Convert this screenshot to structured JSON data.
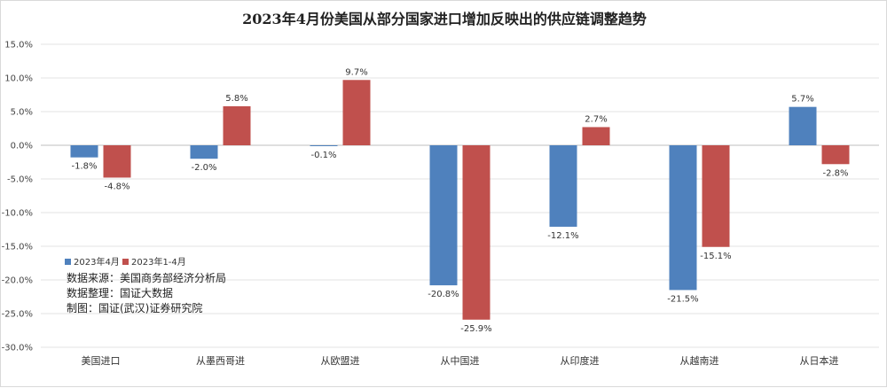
{
  "chart_data": {
    "type": "bar",
    "title": "2023年4月份美国从部分国家进口增加反映出的供应链调整趋势",
    "categories": [
      "美国进口",
      "从墨西哥进",
      "从欧盟进",
      "从中国进",
      "从印度进",
      "从越南进",
      "从日本进"
    ],
    "series": [
      {
        "name": "2023年4月",
        "color": "#4f81bd",
        "values": [
          -1.8,
          -2.0,
          -0.1,
          -20.8,
          -12.1,
          -21.5,
          5.7
        ]
      },
      {
        "name": "2023年1-4月",
        "color": "#c0504d",
        "values": [
          -4.8,
          5.8,
          9.7,
          -25.9,
          2.7,
          -15.1,
          -2.8
        ]
      }
    ],
    "ylim": [
      -30,
      15
    ],
    "yticks": [
      15,
      10,
      5,
      0,
      -5,
      -10,
      -15,
      -20,
      -25,
      -30
    ],
    "ytick_labels": [
      "15.0%",
      "10.0%",
      "5.0%",
      "0.0%",
      "-5.0%",
      "-10.0%",
      "-15.0%",
      "-20.0%",
      "-25.0%",
      "-30.0%"
    ],
    "data_labels": [
      [
        "-1.8%",
        "-2.0%",
        "-0.1%",
        "-20.8%",
        "-12.1%",
        "-21.5%",
        "5.7%"
      ],
      [
        "-4.8%",
        "5.8%",
        "9.7%",
        "-25.9%",
        "2.7%",
        "-15.1%",
        "-2.8%"
      ]
    ],
    "grid": true,
    "legend_position": "bottom-left-inside",
    "notes": [
      "数据来源：美国商务部经济分析局",
      "数据整理：国证大数据",
      "制图：国证(武汉)证券研究院"
    ]
  }
}
